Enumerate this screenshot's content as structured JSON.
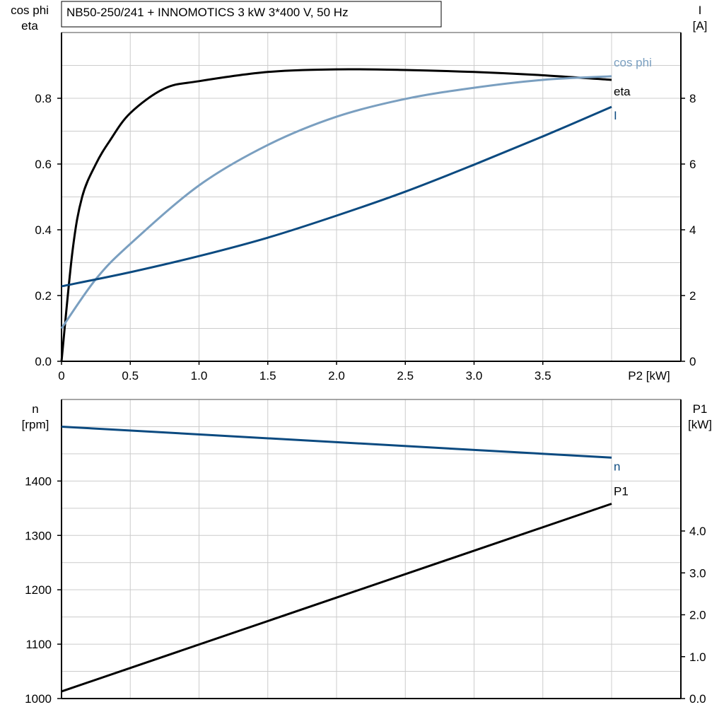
{
  "title": "NB50-250/241 + INNOMOTICS   3 kW   3*400 V, 50 Hz",
  "colors": {
    "eta": "#000000",
    "cos_phi": "#7a9fc0",
    "I": "#0b4a80",
    "n": "#0b4a80",
    "P1": "#000000",
    "grid": "#cccccc"
  },
  "chart_data": [
    {
      "type": "line",
      "xlabel": "P2 [kW]",
      "xlim": [
        0,
        4.5
      ],
      "xticks": [
        "0",
        "0.5",
        "1.0",
        "1.5",
        "2.0",
        "2.5",
        "3.0",
        "3.5"
      ],
      "ylabel_left": [
        "cos phi",
        "eta"
      ],
      "ylim_left": [
        0,
        1.0
      ],
      "yticks_left": [
        "0.0",
        "0.2",
        "0.4",
        "0.6",
        "0.8"
      ],
      "ylabel_right": [
        "I",
        "[A]"
      ],
      "ylim_right": [
        0,
        10
      ],
      "yticks_right": [
        "0",
        "2",
        "4",
        "6",
        "8"
      ],
      "grid": true,
      "series": [
        {
          "name": "eta",
          "axis": "left",
          "color": "#000000",
          "x": [
            0,
            0.08,
            0.15,
            0.25,
            0.35,
            0.5,
            0.75,
            1.0,
            1.5,
            2.0,
            2.5,
            3.0,
            3.5,
            4.0
          ],
          "y": [
            0,
            0.335,
            0.5,
            0.6,
            0.67,
            0.755,
            0.83,
            0.852,
            0.88,
            0.888,
            0.886,
            0.88,
            0.87,
            0.856
          ]
        },
        {
          "name": "cos phi",
          "axis": "left",
          "color": "#7a9fc0",
          "x": [
            0,
            0.25,
            0.5,
            1.0,
            1.5,
            2.0,
            2.5,
            3.0,
            3.5,
            4.0
          ],
          "y": [
            0.1,
            0.25,
            0.357,
            0.535,
            0.658,
            0.744,
            0.798,
            0.832,
            0.856,
            0.867
          ]
        },
        {
          "name": "I",
          "axis": "right",
          "color": "#0b4a80",
          "x": [
            0,
            0.5,
            1.0,
            1.5,
            2.0,
            2.5,
            3.0,
            3.5,
            4.0
          ],
          "y": [
            2.28,
            2.71,
            3.2,
            3.76,
            4.43,
            5.16,
            5.98,
            6.84,
            7.74
          ]
        }
      ]
    },
    {
      "type": "line",
      "xlim": [
        0,
        4.5
      ],
      "ylabel_left": [
        "n",
        "[rpm]"
      ],
      "ylim_left": [
        1000,
        1550
      ],
      "yticks_left": [
        "1000",
        "1100",
        "1200",
        "1300",
        "1400"
      ],
      "ylabel_right": [
        "P1",
        "[kW]"
      ],
      "ylim_right": [
        0,
        7.14
      ],
      "yticks_right": [
        "0.0",
        "1.0",
        "2.0",
        "3.0",
        "4.0"
      ],
      "grid": true,
      "series": [
        {
          "name": "n",
          "axis": "left",
          "color": "#0b4a80",
          "x": [
            0,
            4.0
          ],
          "y": [
            1500,
            1443
          ]
        },
        {
          "name": "P1",
          "axis": "right",
          "color": "#000000",
          "x": [
            0,
            4.0
          ],
          "y": [
            0.17,
            4.65
          ]
        }
      ]
    }
  ]
}
